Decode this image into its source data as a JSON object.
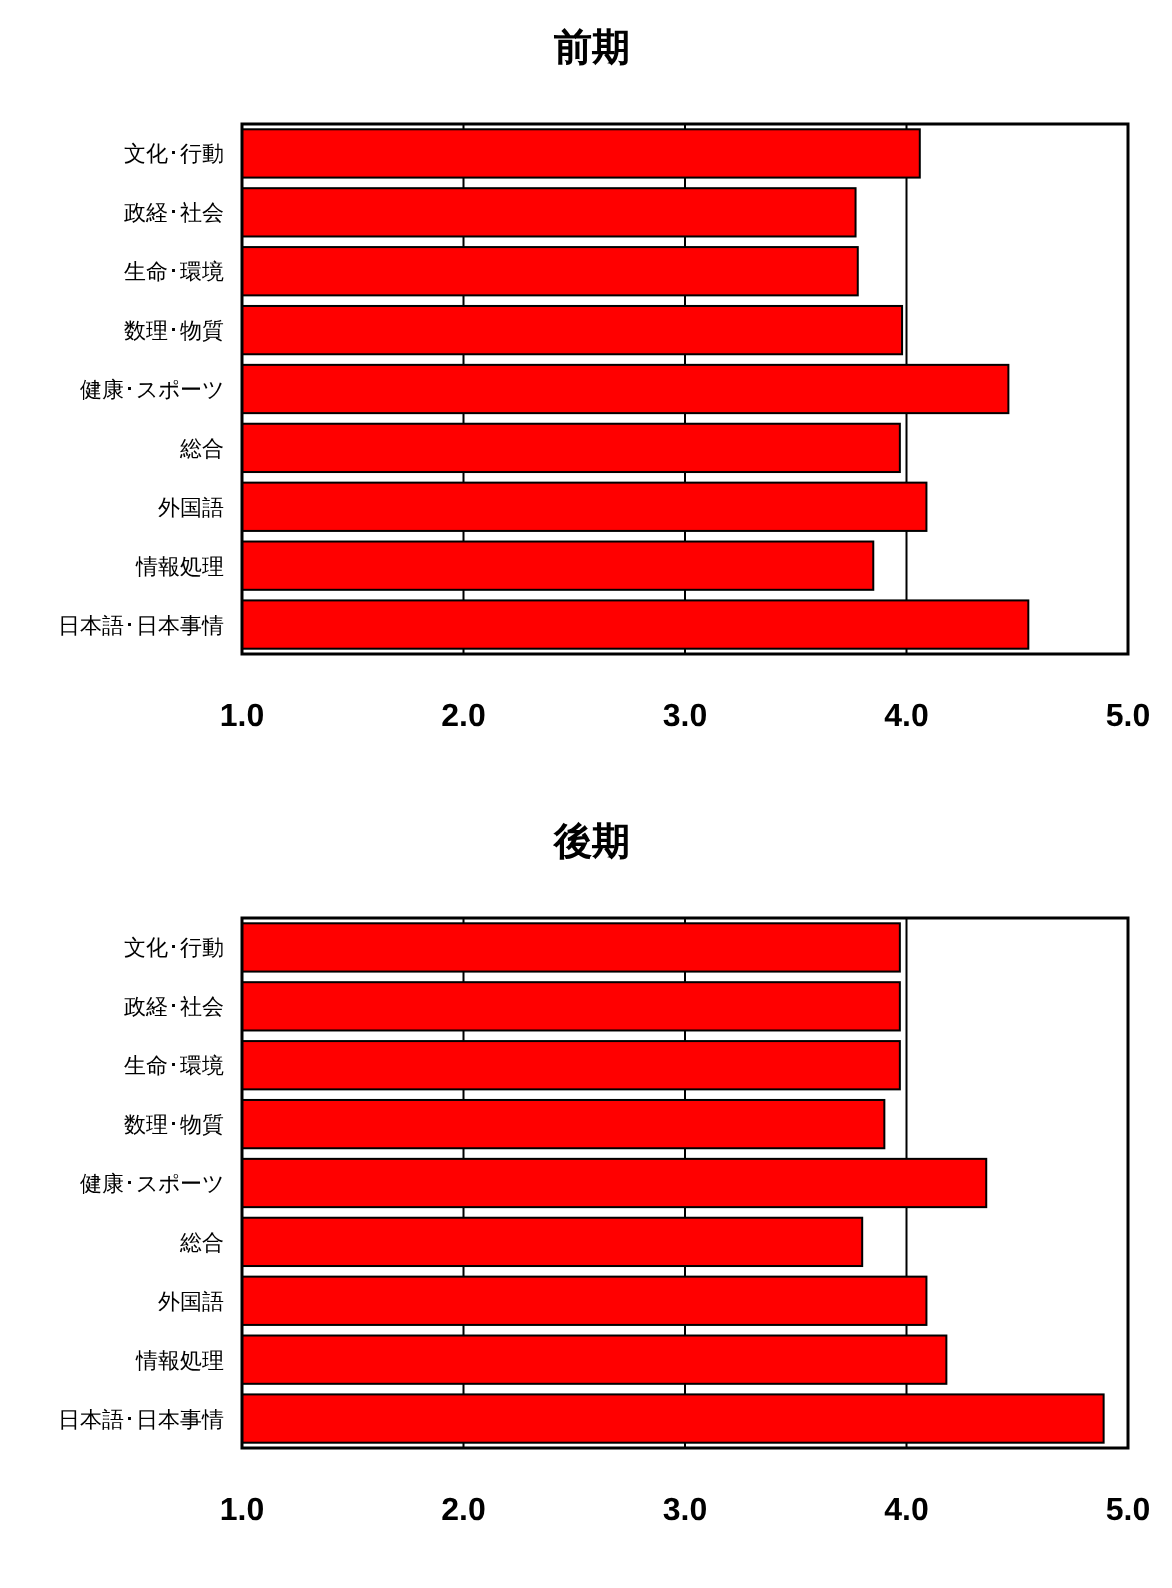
{
  "chart_data": [
    {
      "type": "bar",
      "orientation": "horizontal",
      "title": "前期",
      "categories": [
        "文化･行動",
        "政経･社会",
        "生命･環境",
        "数理･物質",
        "健康･スポーツ",
        "総合",
        "外国語",
        "情報処理",
        "日本語･日本事情"
      ],
      "values": [
        4.06,
        3.77,
        3.78,
        3.98,
        4.46,
        3.97,
        4.09,
        3.85,
        4.55
      ],
      "color": "#ff0000",
      "xlim": [
        1,
        5
      ],
      "xticks": [
        {
          "value": 1,
          "label": "1.0"
        },
        {
          "value": 2,
          "label": "2.0"
        },
        {
          "value": 3,
          "label": "3.0"
        },
        {
          "value": 4,
          "label": "4.0"
        },
        {
          "value": 5,
          "label": "5.0"
        }
      ],
      "grid": "x"
    },
    {
      "type": "bar",
      "orientation": "horizontal",
      "title": "後期",
      "categories": [
        "文化･行動",
        "政経･社会",
        "生命･環境",
        "数理･物質",
        "健康･スポーツ",
        "総合",
        "外国語",
        "情報処理",
        "日本語･日本事情"
      ],
      "values": [
        3.97,
        3.97,
        3.97,
        3.9,
        4.36,
        3.8,
        4.09,
        4.18,
        4.89
      ],
      "color": "#ff0000",
      "xlim": [
        1,
        5
      ],
      "xticks": [
        {
          "value": 1,
          "label": "1.0"
        },
        {
          "value": 2,
          "label": "2.0"
        },
        {
          "value": 3,
          "label": "3.0"
        },
        {
          "value": 4,
          "label": "4.0"
        },
        {
          "value": 5,
          "label": "5.0"
        }
      ],
      "grid": "x"
    }
  ]
}
